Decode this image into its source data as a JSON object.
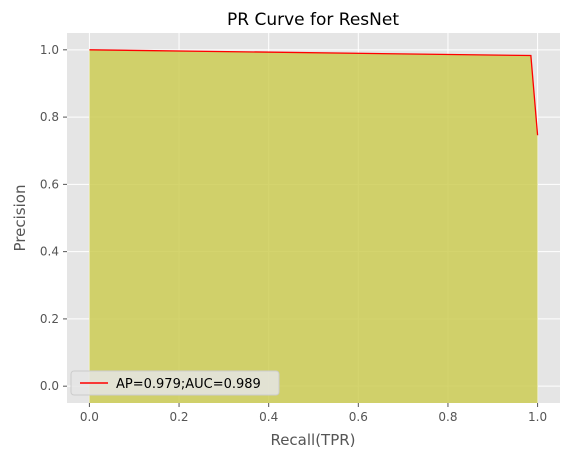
{
  "chart_data": {
    "type": "area",
    "title": "PR Curve for ResNet",
    "xlabel": "Recall(TPR)",
    "ylabel": "Precision",
    "xlim": [
      -0.05,
      1.05
    ],
    "ylim": [
      -0.05,
      1.05
    ],
    "xticks": [
      "0.0",
      "0.2",
      "0.4",
      "0.6",
      "0.8",
      "1.0"
    ],
    "yticks": [
      "0.0",
      "0.2",
      "0.4",
      "0.6",
      "0.8",
      "1.0"
    ],
    "grid": true,
    "legend_position": "lower-left",
    "series": [
      {
        "name": "AP=0.979;AUC=0.989",
        "x": [
          0.0,
          0.985,
          1.0
        ],
        "y": [
          1.0,
          0.983,
          0.746
        ],
        "line_color": "#ff0000",
        "fill_color": "#cccc55"
      }
    ],
    "colors": {
      "plot_background": "#e5e5e5",
      "grid": "#ffffff"
    }
  }
}
